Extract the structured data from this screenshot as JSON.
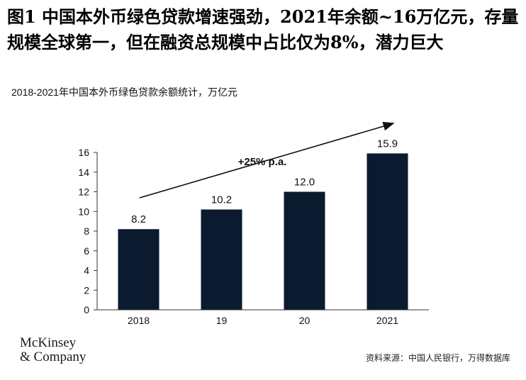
{
  "headline": "图1 中国本外币绿色贷款增速强劲，2021年余额~16万亿元，存量规模全球第一，但在融资总规模中占比仅为8%，潜力巨大",
  "subtitle": "2018-2021年中国本外币绿色贷款余额统计，万亿元",
  "growth_annotation": "+25% p.a.",
  "logo": {
    "line1": "McKinsey",
    "line2": "& Company"
  },
  "source": "资料来源：中国人民银行，万得数据库",
  "colors": {
    "bar": "#0b1a2e",
    "text": "#111111",
    "axis": "#333333"
  },
  "chart_data": {
    "type": "bar",
    "title": "",
    "xlabel": "",
    "ylabel": "",
    "categories": [
      "2018",
      "19",
      "20",
      "2021"
    ],
    "values": [
      8.2,
      10.2,
      12.0,
      15.9
    ],
    "value_labels": [
      "8.2",
      "10.2",
      "12.0",
      "15.9"
    ],
    "ylim": [
      0,
      16
    ],
    "yticks": [
      0,
      2,
      4,
      6,
      8,
      10,
      12,
      14,
      16
    ],
    "grid": false,
    "legend": "none"
  }
}
